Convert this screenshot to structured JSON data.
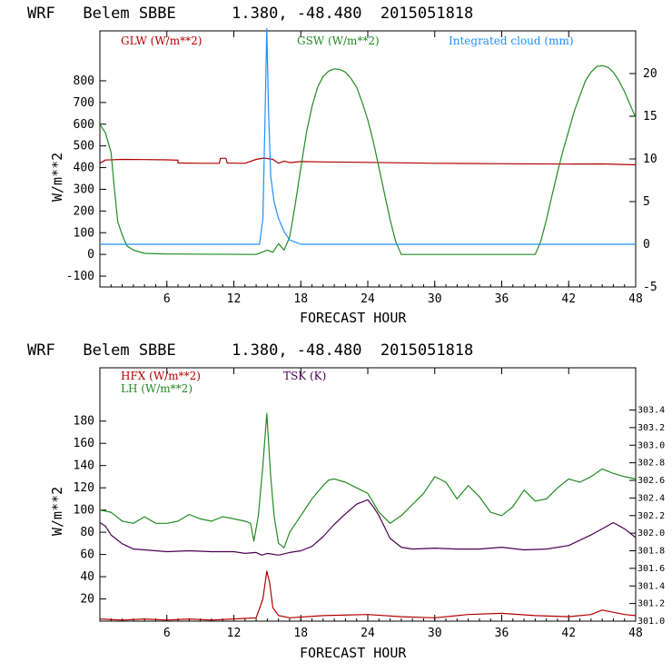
{
  "chart_data": [
    {
      "type": "line",
      "title": "WRF   Belem SBBE      1.380, -48.480  2015051818",
      "xlabel": "FORECAST HOUR",
      "ylabel": "W/m**2",
      "xlim": [
        0,
        48
      ],
      "ylim": [
        -150,
        1030
      ],
      "y2lim": [
        -5,
        25
      ],
      "xticks": [
        "6",
        "12",
        "18",
        "24",
        "30",
        "36",
        "42",
        "48"
      ],
      "yticks": [
        "800",
        "700",
        "600",
        "500",
        "400",
        "300",
        "200",
        "100",
        "0",
        "-100"
      ],
      "y2ticks": [
        "20",
        "15",
        "10",
        "5",
        "0",
        "-5"
      ],
      "colors": {
        "glw": "#b00000",
        "gsw": "#228b22",
        "cloud": "#1e90ff"
      },
      "legend": [
        {
          "key": "glw",
          "label": "GLW (W/m**2)"
        },
        {
          "key": "gsw",
          "label": "GSW (W/m**2)"
        },
        {
          "key": "cloud",
          "label": "Integrated cloud (mm)"
        }
      ],
      "series": [
        {
          "key": "glw",
          "name": "GLW (W/m**2)",
          "axis": "left",
          "points": [
            [
              0,
              420
            ],
            [
              0.5,
              435
            ],
            [
              2,
              438
            ],
            [
              4,
              437
            ],
            [
              6,
              436
            ],
            [
              7,
              434
            ],
            [
              7,
              421
            ],
            [
              9,
              420
            ],
            [
              10.7,
              420
            ],
            [
              10.8,
              443
            ],
            [
              11.3,
              443
            ],
            [
              11.4,
              421
            ],
            [
              13,
              420
            ],
            [
              14,
              438
            ],
            [
              14.7,
              444
            ],
            [
              15.5,
              438
            ],
            [
              16,
              420
            ],
            [
              16.5,
              430
            ],
            [
              17,
              423
            ],
            [
              18,
              428
            ],
            [
              20,
              426
            ],
            [
              24,
              424
            ],
            [
              30,
              420
            ],
            [
              36,
              418
            ],
            [
              42,
              416
            ],
            [
              45,
              417
            ],
            [
              48,
              413
            ]
          ]
        },
        {
          "key": "gsw",
          "name": "GSW (W/m**2)",
          "axis": "left",
          "points": [
            [
              0,
              600
            ],
            [
              0.5,
              560
            ],
            [
              1,
              470
            ],
            [
              1.3,
              300
            ],
            [
              1.6,
              150
            ],
            [
              2,
              90
            ],
            [
              2.4,
              40
            ],
            [
              3,
              20
            ],
            [
              4,
              5
            ],
            [
              5,
              3
            ],
            [
              6,
              2
            ],
            [
              14,
              0
            ],
            [
              14.5,
              10
            ],
            [
              15,
              20
            ],
            [
              15.5,
              10
            ],
            [
              16,
              50
            ],
            [
              16.5,
              20
            ],
            [
              17,
              80
            ],
            [
              17.5,
              230
            ],
            [
              18,
              400
            ],
            [
              18.5,
              560
            ],
            [
              19,
              680
            ],
            [
              19.5,
              770
            ],
            [
              20,
              820
            ],
            [
              20.5,
              845
            ],
            [
              21,
              855
            ],
            [
              21.5,
              852
            ],
            [
              22,
              840
            ],
            [
              22.5,
              810
            ],
            [
              23,
              770
            ],
            [
              23.5,
              700
            ],
            [
              24,
              620
            ],
            [
              24.5,
              520
            ],
            [
              25,
              400
            ],
            [
              25.5,
              280
            ],
            [
              26,
              160
            ],
            [
              26.5,
              60
            ],
            [
              27,
              0
            ],
            [
              39,
              0
            ],
            [
              39.5,
              60
            ],
            [
              40,
              160
            ],
            [
              40.5,
              270
            ],
            [
              41,
              380
            ],
            [
              41.5,
              480
            ],
            [
              42,
              570
            ],
            [
              42.5,
              660
            ],
            [
              43,
              730
            ],
            [
              43.5,
              800
            ],
            [
              44,
              840
            ],
            [
              44.5,
              865
            ],
            [
              45,
              870
            ],
            [
              45.5,
              862
            ],
            [
              46,
              840
            ],
            [
              46.5,
              800
            ],
            [
              47,
              750
            ],
            [
              47.5,
              690
            ],
            [
              48,
              630
            ]
          ]
        },
        {
          "key": "cloud",
          "name": "Integrated cloud (mm)",
          "axis": "right",
          "points": [
            [
              0,
              0
            ],
            [
              14.3,
              0
            ],
            [
              14.6,
              3
            ],
            [
              14.8,
              15
            ],
            [
              14.95,
              25.3
            ],
            [
              15.1,
              16
            ],
            [
              15.3,
              8
            ],
            [
              15.6,
              5
            ],
            [
              16,
              3
            ],
            [
              16.5,
              1.5
            ],
            [
              17,
              0.5
            ],
            [
              18,
              0
            ],
            [
              48,
              0
            ]
          ]
        }
      ]
    },
    {
      "type": "line",
      "title": "WRF   Belem SBBE      1.380, -48.480  2015051818",
      "xlabel": "FORECAST HOUR",
      "ylabel": "W/m**2",
      "xlim": [
        0,
        48
      ],
      "ylim": [
        0,
        228
      ],
      "y2lim": [
        301.0,
        303.88
      ],
      "xticks": [
        "6",
        "12",
        "18",
        "24",
        "30",
        "36",
        "42",
        "48"
      ],
      "yticks": [
        "180",
        "160",
        "140",
        "120",
        "100",
        "80",
        "60",
        "40",
        "20"
      ],
      "y2ticks": [
        "303.4",
        "303.2",
        "303.0",
        "302.8",
        "302.6",
        "302.4",
        "302.2",
        "302.0",
        "301.8",
        "301.6",
        "301.4",
        "301.2",
        "301.0"
      ],
      "colors": {
        "hfx": "#b00000",
        "lh": "#228b22",
        "tsk": "#4b0050"
      },
      "legend": [
        {
          "key": "hfx",
          "label": "HFX (W/m**2)"
        },
        {
          "key": "lh",
          "label": "LH (W/m**2)"
        },
        {
          "key": "tsk",
          "label": "TSK (K)"
        }
      ],
      "series": [
        {
          "key": "hfx",
          "name": "HFX (W/m**2)",
          "axis": "left",
          "points": [
            [
              0,
              2
            ],
            [
              2,
              1
            ],
            [
              4,
              2
            ],
            [
              6,
              1
            ],
            [
              8,
              2
            ],
            [
              10,
              1
            ],
            [
              12,
              2
            ],
            [
              14,
              3
            ],
            [
              14.6,
              20
            ],
            [
              14.95,
              45
            ],
            [
              15.2,
              35
            ],
            [
              15.5,
              12
            ],
            [
              16,
              5
            ],
            [
              17,
              3
            ],
            [
              20,
              5
            ],
            [
              24,
              6
            ],
            [
              27,
              4
            ],
            [
              30,
              3
            ],
            [
              33,
              6
            ],
            [
              36,
              7
            ],
            [
              39,
              5
            ],
            [
              42,
              4
            ],
            [
              44,
              6
            ],
            [
              45,
              10
            ],
            [
              46,
              8
            ],
            [
              47,
              6
            ],
            [
              48,
              5
            ]
          ]
        },
        {
          "key": "lh",
          "name": "LH (W/m**2)",
          "axis": "left",
          "points": [
            [
              0,
              100
            ],
            [
              1,
              98
            ],
            [
              2,
              90
            ],
            [
              3,
              88
            ],
            [
              4,
              94
            ],
            [
              5,
              88
            ],
            [
              6,
              88
            ],
            [
              7,
              90
            ],
            [
              8,
              96
            ],
            [
              9,
              92
            ],
            [
              10,
              90
            ],
            [
              11,
              94
            ],
            [
              12,
              92
            ],
            [
              13,
              90
            ],
            [
              13.5,
              88
            ],
            [
              13.8,
              72
            ],
            [
              14.2,
              95
            ],
            [
              14.6,
              140
            ],
            [
              14.95,
              187
            ],
            [
              15.3,
              130
            ],
            [
              15.6,
              95
            ],
            [
              16,
              70
            ],
            [
              16.5,
              66
            ],
            [
              17,
              80
            ],
            [
              18,
              95
            ],
            [
              19,
              110
            ],
            [
              20,
              122
            ],
            [
              20.5,
              127
            ],
            [
              21,
              128
            ],
            [
              22,
              125
            ],
            [
              23,
              120
            ],
            [
              24,
              115
            ],
            [
              25,
              98
            ],
            [
              26,
              88
            ],
            [
              27,
              95
            ],
            [
              28,
              105
            ],
            [
              29,
              115
            ],
            [
              30,
              130
            ],
            [
              31,
              125
            ],
            [
              32,
              110
            ],
            [
              33,
              122
            ],
            [
              34,
              112
            ],
            [
              35,
              98
            ],
            [
              36,
              95
            ],
            [
              37,
              103
            ],
            [
              38,
              118
            ],
            [
              39,
              108
            ],
            [
              40,
              110
            ],
            [
              41,
              120
            ],
            [
              42,
              128
            ],
            [
              43,
              125
            ],
            [
              44,
              130
            ],
            [
              45,
              137
            ],
            [
              46,
              133
            ],
            [
              47,
              130
            ],
            [
              48,
              128
            ]
          ]
        },
        {
          "key": "tsk",
          "name": "TSK (K)",
          "axis": "right",
          "points": [
            [
              0,
              302.12
            ],
            [
              0.5,
              302.08
            ],
            [
              1,
              301.98
            ],
            [
              2,
              301.88
            ],
            [
              3,
              301.82
            ],
            [
              4,
              301.81
            ],
            [
              6,
              301.79
            ],
            [
              8,
              301.8
            ],
            [
              10,
              301.79
            ],
            [
              12,
              301.79
            ],
            [
              13,
              301.77
            ],
            [
              14,
              301.78
            ],
            [
              14.5,
              301.75
            ],
            [
              15,
              301.77
            ],
            [
              16,
              301.75
            ],
            [
              17,
              301.78
            ],
            [
              18,
              301.8
            ],
            [
              19,
              301.85
            ],
            [
              20,
              301.96
            ],
            [
              21,
              302.1
            ],
            [
              22,
              302.22
            ],
            [
              23,
              302.33
            ],
            [
              24,
              302.38
            ],
            [
              24.5,
              302.3
            ],
            [
              25,
              302.2
            ],
            [
              26,
              301.94
            ],
            [
              27,
              301.84
            ],
            [
              28,
              301.82
            ],
            [
              30,
              301.83
            ],
            [
              32,
              301.82
            ],
            [
              34,
              301.82
            ],
            [
              36,
              301.84
            ],
            [
              38,
              301.81
            ],
            [
              40,
              301.82
            ],
            [
              42,
              301.86
            ],
            [
              44,
              301.98
            ],
            [
              46,
              302.12
            ],
            [
              47,
              302.05
            ],
            [
              48,
              301.95
            ]
          ]
        }
      ]
    }
  ]
}
